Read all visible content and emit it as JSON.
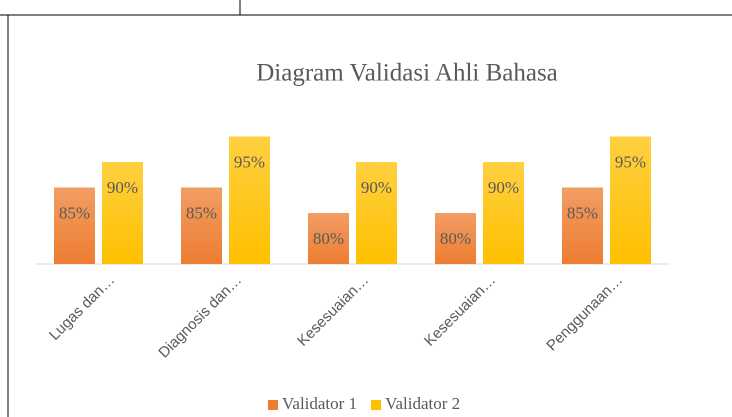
{
  "chart_data": {
    "type": "bar",
    "title": "Diagram Validasi Ahli Bahasa",
    "categories": [
      "Lugas dan…",
      "Diagnosis dan…",
      "Kesesuaian…",
      "Kesesuaian…",
      "Penggunaan…"
    ],
    "series": [
      {
        "name": "Validator 1",
        "color": "#ed7d31",
        "values": [
          85,
          85,
          80,
          80,
          85
        ],
        "value_labels": [
          "85%",
          "85%",
          "80%",
          "80%",
          "85%"
        ]
      },
      {
        "name": "Validator 2",
        "color": "#ffc000",
        "values": [
          90,
          95,
          90,
          90,
          95
        ],
        "value_labels": [
          "90%",
          "95%",
          "90%",
          "90%",
          "95%"
        ]
      }
    ],
    "ylim": [
      70,
      100
    ],
    "legend": "bottom"
  }
}
